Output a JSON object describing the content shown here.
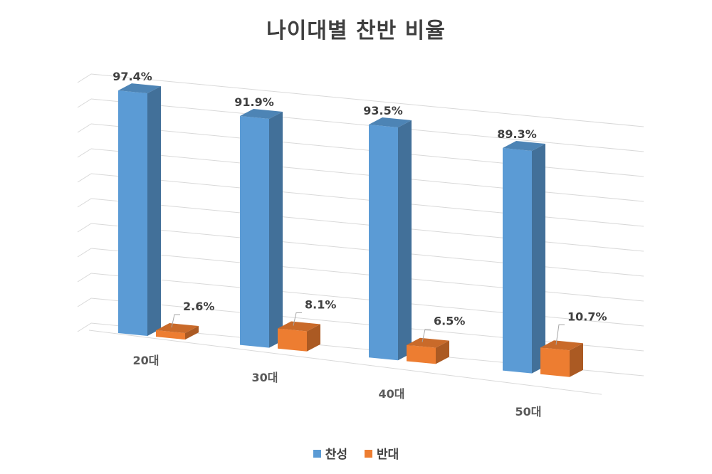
{
  "chart_data": {
    "type": "bar",
    "title": "나이대별 찬반 비율",
    "categories": [
      "20대",
      "30대",
      "40대",
      "50대"
    ],
    "series": [
      {
        "name": "찬성",
        "values": [
          97.4,
          91.9,
          93.5,
          89.3
        ],
        "labels": [
          "97.4%",
          "91.9%",
          "93.5%",
          "89.3%"
        ],
        "color": "#5b9bd5"
      },
      {
        "name": "반대",
        "values": [
          2.6,
          8.1,
          6.5,
          10.7
        ],
        "labels": [
          "2.6%",
          "8.1%",
          "6.5%",
          "10.7%"
        ],
        "color": "#ed7d31"
      }
    ],
    "ylim": [
      0,
      100
    ],
    "grid": true,
    "legend_position": "bottom",
    "style": "3d-clustered-column"
  }
}
